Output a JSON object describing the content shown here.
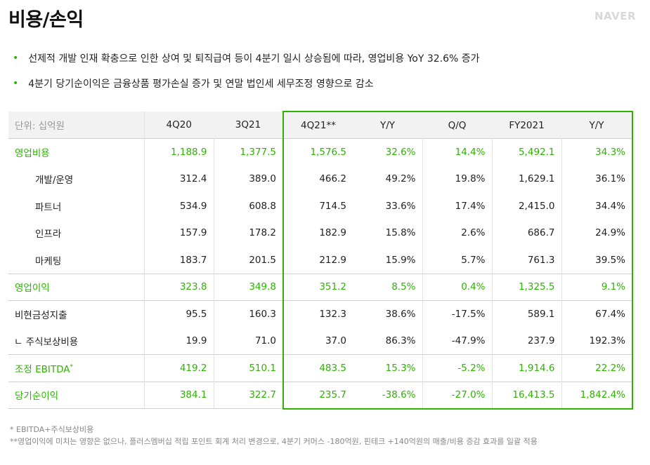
{
  "header": {
    "title": "비용/손익",
    "logo": "NAVER"
  },
  "bullets": [
    "선제적 개발 인재 확충으로 인한 상여 및 퇴직급여 등이 4분기 일시 상승됨에 따라, 영업비용 YoY 32.6% 증가",
    "4분기 당기순이익은 금융상품 평가손실 증가 및 연말 법인세 세무조정 영향으로 감소"
  ],
  "table": {
    "unit": "단위: 십억원",
    "columns": [
      "4Q20",
      "3Q21",
      "4Q21**",
      "Y/Y",
      "Q/Q",
      "FY2021",
      "Y/Y"
    ],
    "rows": [
      {
        "label": "영업비용",
        "values": [
          "1,188.9",
          "1,377.5",
          "1,576.5",
          "32.6%",
          "14.4%",
          "5,492.1",
          "34.3%"
        ]
      },
      {
        "label": "개발/운영",
        "values": [
          "312.4",
          "389.0",
          "466.2",
          "49.2%",
          "19.8%",
          "1,629.1",
          "36.1%"
        ]
      },
      {
        "label": "파트너",
        "values": [
          "534.9",
          "608.8",
          "714.5",
          "33.6%",
          "17.4%",
          "2,415.0",
          "34.4%"
        ]
      },
      {
        "label": "인프라",
        "values": [
          "157.9",
          "178.2",
          "182.9",
          "15.8%",
          "2.6%",
          "686.7",
          "24.9%"
        ]
      },
      {
        "label": "마케팅",
        "values": [
          "183.7",
          "201.5",
          "212.9",
          "15.9%",
          "5.7%",
          "761.3",
          "39.5%"
        ]
      },
      {
        "label": "영업이익",
        "values": [
          "323.8",
          "349.8",
          "351.2",
          "8.5%",
          "0.4%",
          "1,325.5",
          "9.1%"
        ]
      },
      {
        "label": "비현금성지출",
        "values": [
          "95.5",
          "160.3",
          "132.3",
          "38.6%",
          "-17.5%",
          "589.1",
          "67.4%"
        ]
      },
      {
        "label": "ㄴ 주식보상비용",
        "values": [
          "19.9",
          "71.0",
          "37.0",
          "86.3%",
          "-47.9%",
          "237.9",
          "192.3%"
        ]
      },
      {
        "label": "조정 EBITDA",
        "sup": "*",
        "values": [
          "419.2",
          "510.1",
          "483.5",
          "15.3%",
          "-5.2%",
          "1,914.6",
          "22.2%"
        ]
      },
      {
        "label": "당기순이익",
        "values": [
          "384.1",
          "322.7",
          "235.7",
          "-38.6%",
          "-27.0%",
          "16,413.5",
          "1,842.4%"
        ]
      }
    ]
  },
  "footnotes": [
    "* EBITDA+주식보상비용",
    "**영업이익에 미치는 영향은 없으나, 플러스멤버십 적립 포인트 회계 처리 변경으로, 4분기 커머스 -180억원, 핀테크 +140억원의 매출/비용 증감 효과를 일괄 적용"
  ],
  "colors": {
    "accent": "#2db400",
    "header_bg": "#f2f2f2"
  }
}
